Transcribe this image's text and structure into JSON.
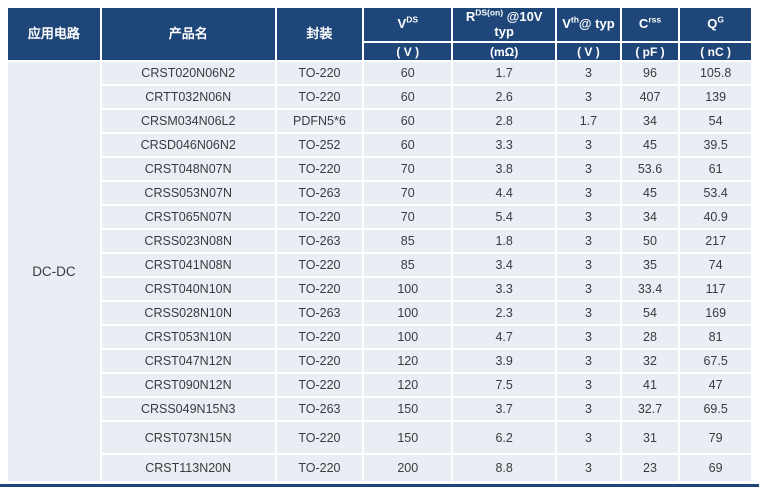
{
  "table": {
    "app_circuit": "DC-DC",
    "header": {
      "app_label": "应用电路",
      "product_label": "产品名",
      "package_label": "封装",
      "params": [
        {
          "base": "V",
          "sup": "DS",
          "rest": "",
          "line2": "",
          "unit": "( V )"
        },
        {
          "base": "R",
          "sup": "DS(on)",
          "rest": " @10V",
          "line2": "typ",
          "unit": "(mΩ)"
        },
        {
          "base": "V",
          "sup": "th",
          "rest": "@ typ",
          "line2": "",
          "unit": "( V )"
        },
        {
          "base": "C",
          "sup": "rss",
          "rest": "",
          "line2": "",
          "unit": "( pF )"
        },
        {
          "base": "Q",
          "sup": "G",
          "rest": "",
          "line2": "",
          "unit": "( nC )"
        }
      ]
    },
    "rows": [
      [
        "CRST020N06N2",
        "TO-220",
        "60",
        "1.7",
        "3",
        "96",
        "105.8"
      ],
      [
        "CRTT032N06N",
        "TO-220",
        "60",
        "2.6",
        "3",
        "407",
        "139"
      ],
      [
        "CRSM034N06L2",
        "PDFN5*6",
        "60",
        "2.8",
        "1.7",
        "34",
        "54"
      ],
      [
        "CRSD046N06N2",
        "TO-252",
        "60",
        "3.3",
        "3",
        "45",
        "39.5"
      ],
      [
        "CRST048N07N",
        "TO-220",
        "70",
        "3.8",
        "3",
        "53.6",
        "61"
      ],
      [
        "CRSS053N07N",
        "TO-263",
        "70",
        "4.4",
        "3",
        "45",
        "53.4"
      ],
      [
        "CRST065N07N",
        "TO-220",
        "70",
        "5.4",
        "3",
        "34",
        "40.9"
      ],
      [
        "CRSS023N08N",
        "TO-263",
        "85",
        "1.8",
        "3",
        "50",
        "217"
      ],
      [
        "CRST041N08N",
        "TO-220",
        "85",
        "3.4",
        "3",
        "35",
        "74"
      ],
      [
        "CRST040N10N",
        "TO-220",
        "100",
        "3.3",
        "3",
        "33.4",
        "117"
      ],
      [
        "CRSS028N10N",
        "TO-263",
        "100",
        "2.3",
        "3",
        "54",
        "169"
      ],
      [
        "CRST053N10N",
        "TO-220",
        "100",
        "4.7",
        "3",
        "28",
        "81"
      ],
      [
        "CRST047N12N",
        "TO-220",
        "120",
        "3.9",
        "3",
        "32",
        "67.5"
      ],
      [
        "CRST090N12N",
        "TO-220",
        "120",
        "7.5",
        "3",
        "41",
        "47"
      ],
      [
        "CRSS049N15N3",
        "TO-263",
        "150",
        "3.7",
        "3",
        "32.7",
        "69.5"
      ],
      [
        "CRST073N15N",
        "TO-220",
        "150",
        "6.2",
        "3",
        "31",
        "79"
      ],
      [
        "CRST113N20N",
        "TO-220",
        "200",
        "8.8",
        "3",
        "23",
        "69"
      ]
    ],
    "colors": {
      "header_bg": "#1E4679",
      "row_bg": "#E9EDF4",
      "text": "#3B3B3D"
    }
  }
}
